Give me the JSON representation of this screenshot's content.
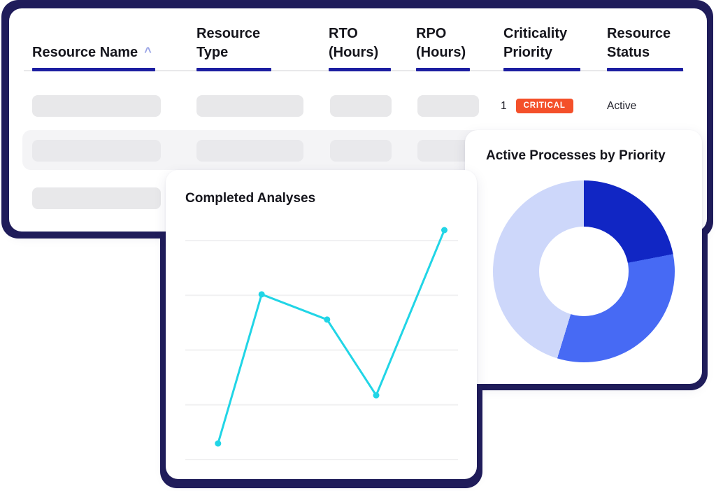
{
  "colors": {
    "navy_outline": "#201d5b",
    "header_underline": "#1c1ea1",
    "badge_bg": "#f4502a",
    "line_stroke": "#21d5e6",
    "gridline": "#f1f1f2",
    "donut_dark": "#1126c4",
    "donut_mid": "#476af4",
    "donut_light": "#cdd7fa",
    "skeleton_bar": "#e8e8ea",
    "row_highlight_band": "#f4f4f6"
  },
  "table": {
    "columns": [
      {
        "label": "Resource Name",
        "sort_icon": "^",
        "sorted": "ascending"
      },
      {
        "label": "Resource Type"
      },
      {
        "label": "RTO (Hours)"
      },
      {
        "label": "RPO (Hours)"
      },
      {
        "label": "Criticality Priority"
      },
      {
        "label": "Resource Status"
      }
    ],
    "rows": [
      {
        "criticality_rank": "1",
        "criticality_badge": "CRITICAL",
        "status": "Active",
        "skeleton_cells": 4
      },
      {
        "skeleton_cells": 4,
        "highlighted": true
      },
      {
        "skeleton_cells": 4
      }
    ]
  },
  "cards": {
    "donut": {
      "title": "Active Processes by Priority"
    },
    "line": {
      "title": "Completed Analyses"
    }
  },
  "chart_data": [
    {
      "type": "pie",
      "variant": "donut",
      "title": "Active Processes by Priority",
      "legend": "none",
      "segments": [
        {
          "name": "segment-1",
          "color": "#1126c4",
          "start_deg": 0,
          "end_deg": 79,
          "pct": 22
        },
        {
          "name": "segment-2",
          "color": "#476af4",
          "start_deg": 79,
          "end_deg": 197,
          "pct": 33
        },
        {
          "name": "segment-3",
          "color": "#cdd7fa",
          "start_deg": 197,
          "end_deg": 360,
          "pct": 45
        }
      ]
    },
    {
      "type": "line",
      "title": "Completed Analyses",
      "grid": "horizontal-only",
      "axis_tick_labels": "none",
      "x_pct": [
        12,
        28,
        52,
        70,
        95
      ],
      "values_pct": [
        7,
        72,
        61,
        28,
        100
      ],
      "ylim": [
        0,
        100
      ]
    }
  ]
}
